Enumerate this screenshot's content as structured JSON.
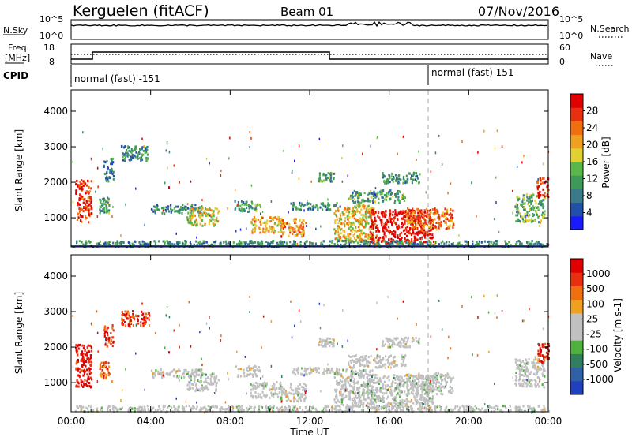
{
  "header": {
    "site_title": "Kerguelen (fitACF)",
    "beam": "Beam 01",
    "date": "07/Nov/2016"
  },
  "top_panels": {
    "nsky_label": "N.Sky",
    "nsky_ticks": [
      "10^5",
      "10^0"
    ],
    "nsearch_label": "N.Search",
    "nsearch_ticks": [
      "10^5",
      "10^0"
    ],
    "freq_label": "Freq.",
    "freq_unit": "[MHz]",
    "freq_ticks": [
      "18",
      "8"
    ],
    "nave_label": "Nave",
    "nave_ticks": [
      "60",
      "0"
    ],
    "cpid_label": "CPID",
    "cpid_segments": [
      "normal (fast) -151",
      "normal (fast) 151"
    ]
  },
  "colors": {
    "power_scale": [
      "#1a1aff",
      "#2050a8",
      "#3a7a8a",
      "#3f9a5a",
      "#5ab84a",
      "#e0d030",
      "#f0a020",
      "#f07010",
      "#e83010",
      "#e00000"
    ],
    "velocity_scale": [
      "#2040c0",
      "#3060a8",
      "#308060",
      "#50b040",
      "#c0c0c0",
      "#c0c0c0",
      "#f0a020",
      "#f07010",
      "#e83010",
      "#e00000"
    ],
    "ground_scatter": "#c0c0c0"
  },
  "chart_data": [
    {
      "type": "heatmap",
      "title": "Power",
      "xlabel": "",
      "ylabel": "Slant Range [km]",
      "x_ticks": [
        "00:00",
        "04:00",
        "08:00",
        "12:00",
        "16:00",
        "20:00",
        "00:00"
      ],
      "x_range_hours": [
        0,
        24
      ],
      "ylim": [
        180,
        4600
      ],
      "y_ticks": [
        1000,
        2000,
        3000,
        4000
      ],
      "colorbar_label": "Power [dB]",
      "colorbar_ticks": [
        "28",
        "24",
        "20",
        "16",
        "12",
        "8",
        "4"
      ],
      "colorbar_range": [
        0,
        30
      ]
    },
    {
      "type": "heatmap",
      "title": "Velocity",
      "xlabel": "Time UT",
      "ylabel": "Slant Range [km]",
      "x_ticks": [
        "00:00",
        "04:00",
        "08:00",
        "12:00",
        "16:00",
        "20:00",
        "00:00"
      ],
      "x_range_hours": [
        0,
        24
      ],
      "ylim": [
        180,
        4600
      ],
      "y_ticks": [
        1000,
        2000,
        3000,
        4000
      ],
      "colorbar_label": "Velocity [m s-1]",
      "colorbar_ticks": [
        "1000",
        "500",
        "100",
        "25",
        "-25",
        "-100",
        "-500",
        "-1000"
      ],
      "colorbar_range": [
        -1000,
        1000
      ]
    }
  ],
  "scatter_regions": [
    {
      "t0": 0.2,
      "t1": 1.0,
      "r0": 900,
      "r1": 2100,
      "level": 0.85,
      "vel": 0.95
    },
    {
      "t0": 1.4,
      "t1": 1.9,
      "r0": 1150,
      "r1": 1600,
      "level": 0.35,
      "vel": 0.8
    },
    {
      "t0": 1.6,
      "t1": 2.1,
      "r0": 2050,
      "r1": 2700,
      "level": 0.25,
      "vel": 0.9
    },
    {
      "t0": 2.5,
      "t1": 3.9,
      "r0": 2600,
      "r1": 3050,
      "level": 0.3,
      "vel": 0.85
    },
    {
      "t0": 4.0,
      "t1": 6.6,
      "r0": 1150,
      "r1": 1400,
      "level": 0.3,
      "vel": 0.5
    },
    {
      "t0": 5.8,
      "t1": 7.4,
      "r0": 800,
      "r1": 1300,
      "level": 0.55,
      "vel": 0.45
    },
    {
      "t0": 8.2,
      "t1": 9.5,
      "r0": 1200,
      "r1": 1500,
      "level": 0.35,
      "vel": 0.5
    },
    {
      "t0": 9.0,
      "t1": 10.6,
      "r0": 600,
      "r1": 1050,
      "level": 0.65,
      "vel": 0.45
    },
    {
      "t0": 10.5,
      "t1": 11.8,
      "r0": 500,
      "r1": 1000,
      "level": 0.7,
      "vel": 0.5
    },
    {
      "t0": 11.0,
      "t1": 13.5,
      "r0": 1250,
      "r1": 1450,
      "level": 0.3,
      "vel": 0.5
    },
    {
      "t0": 12.4,
      "t1": 13.2,
      "r0": 2050,
      "r1": 2300,
      "level": 0.35,
      "vel": 0.5
    },
    {
      "t0": 13.2,
      "t1": 15.2,
      "r0": 350,
      "r1": 1400,
      "level": 0.6,
      "vel": 0.45
    },
    {
      "t0": 13.9,
      "t1": 16.8,
      "r0": 1450,
      "r1": 1800,
      "level": 0.35,
      "vel": 0.5
    },
    {
      "t0": 15.0,
      "t1": 18.2,
      "r0": 300,
      "r1": 1250,
      "level": 0.95,
      "vel": 0.45
    },
    {
      "t0": 15.6,
      "t1": 17.5,
      "r0": 2000,
      "r1": 2300,
      "level": 0.3,
      "vel": 0.5
    },
    {
      "t0": 16.8,
      "t1": 19.2,
      "r0": 700,
      "r1": 1300,
      "level": 0.75,
      "vel": 0.45
    },
    {
      "t0": 22.3,
      "t1": 23.8,
      "r0": 900,
      "r1": 1700,
      "level": 0.4,
      "vel": 0.5
    },
    {
      "t0": 23.4,
      "t1": 24.0,
      "r0": 1600,
      "r1": 2150,
      "level": 0.9,
      "vel": 0.95
    },
    {
      "t0": 0.0,
      "t1": 24.0,
      "r0": 200,
      "r1": 380,
      "level": 0.3,
      "vel": 0.45
    }
  ]
}
